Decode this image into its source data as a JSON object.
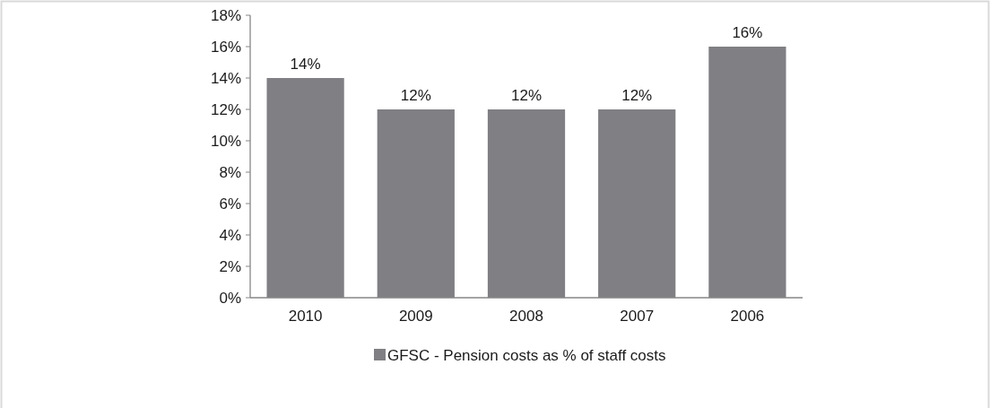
{
  "chart_data": {
    "type": "bar",
    "categories": [
      "2010",
      "2009",
      "2008",
      "2007",
      "2006"
    ],
    "series": [
      {
        "name": "GFSC - Pension costs as % of staff costs",
        "color": "#807f83",
        "values": [
          14,
          12,
          12,
          12,
          16
        ]
      }
    ],
    "ylim": [
      0,
      18
    ],
    "yticks": [
      {
        "value": 0,
        "label": "0%"
      },
      {
        "value": 2,
        "label": "2%"
      },
      {
        "value": 4,
        "label": "4%"
      },
      {
        "value": 6,
        "label": "6%"
      },
      {
        "value": 8,
        "label": "8%"
      },
      {
        "value": 10,
        "label": "10%"
      },
      {
        "value": 12,
        "label": "12%"
      },
      {
        "value": 14,
        "label": "14%"
      },
      {
        "value": 16,
        "label": "16%"
      },
      {
        "value": 18,
        "label": "18%"
      }
    ],
    "value_labels": [
      "14%",
      "12%",
      "12%",
      "12%",
      "16%"
    ],
    "legend": "bottom",
    "grid": false
  }
}
